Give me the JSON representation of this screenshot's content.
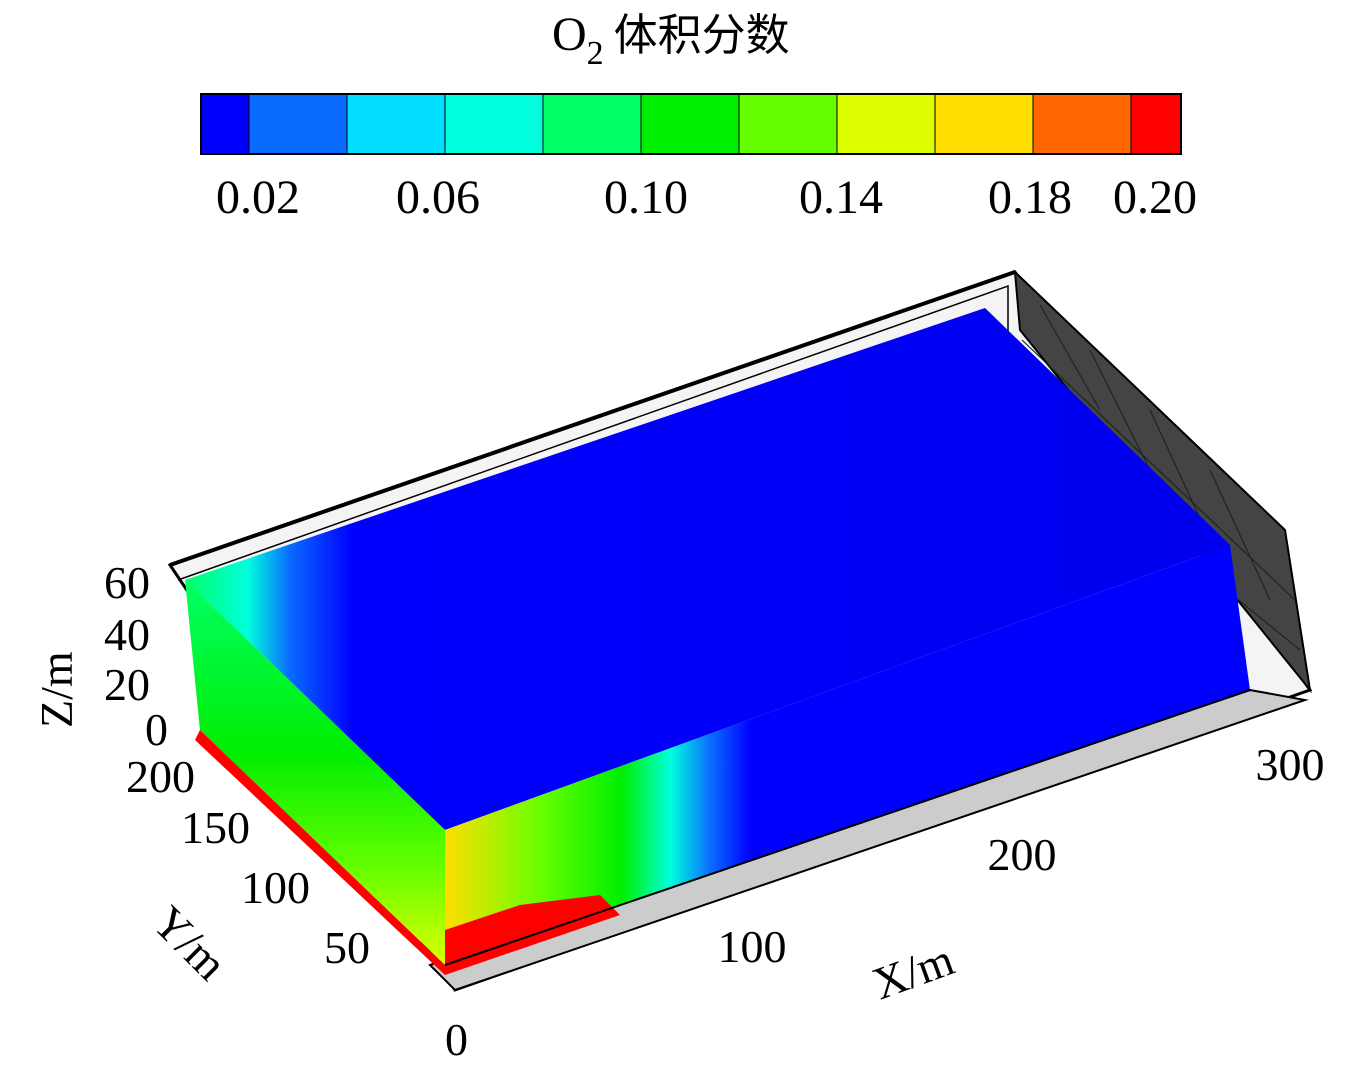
{
  "legend": {
    "title_species": "O",
    "title_subscript": "2",
    "title_text": "体积分数",
    "bands": [
      "#0000ff",
      "#0a6cff",
      "#00ddff",
      "#00ffdd",
      "#00ff66",
      "#00ee00",
      "#66ff00",
      "#ddff00",
      "#ffdd00",
      "#ff6600",
      "#ff0000"
    ],
    "tick_labels": [
      "0.02",
      "0.06",
      "0.10",
      "0.14",
      "0.18",
      "0.20"
    ]
  },
  "axes": {
    "x": {
      "label": "X/m",
      "ticks": [
        "100",
        "200",
        "300"
      ]
    },
    "y": {
      "label": "Y/m",
      "ticks": [
        "200",
        "150",
        "100",
        "50"
      ]
    },
    "z": {
      "label": "Z/m",
      "ticks": [
        "60",
        "40",
        "20",
        "0"
      ]
    },
    "origin": "0"
  },
  "colors": {
    "bg": "#ffffff",
    "outline": "#000000",
    "panel_dark": "#444444",
    "floor": "#cccccc"
  }
}
